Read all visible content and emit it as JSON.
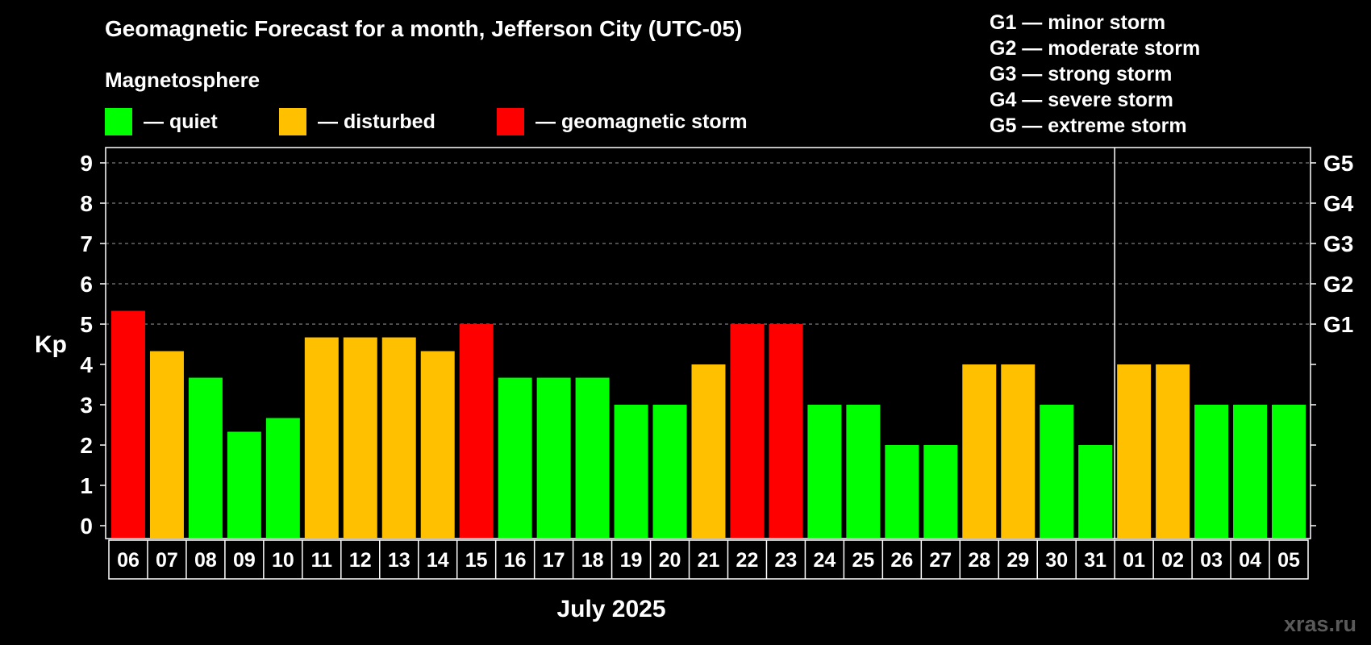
{
  "header": {
    "title": "Geomagnetic Forecast for a month, Jefferson City (UTC-05)",
    "subtitle": "Magnetosphere"
  },
  "legend": [
    {
      "label": "— quiet",
      "color": "#00ff00"
    },
    {
      "label": "— disturbed",
      "color": "#ffc000"
    },
    {
      "label": "— geomagnetic storm",
      "color": "#ff0000"
    }
  ],
  "storm_scale": [
    "G1 — minor storm",
    "G2 — moderate storm",
    "G3 — strong storm",
    "G4 — severe storm",
    "G5 — extreme storm"
  ],
  "watermark": "xras.ru",
  "chart_data": {
    "type": "bar",
    "ylabel": "Kp",
    "xlabel": "July 2025",
    "ylim": [
      0,
      9
    ],
    "yticks": [
      "0",
      "1",
      "2",
      "3",
      "4",
      "5",
      "6",
      "7",
      "8",
      "9"
    ],
    "right_ticks": [
      {
        "value": 5,
        "label": "G1"
      },
      {
        "value": 6,
        "label": "G2"
      },
      {
        "value": 7,
        "label": "G3"
      },
      {
        "value": 8,
        "label": "G4"
      },
      {
        "value": 9,
        "label": "G5"
      }
    ],
    "categories": [
      "06",
      "07",
      "08",
      "09",
      "10",
      "11",
      "12",
      "13",
      "14",
      "15",
      "16",
      "17",
      "18",
      "19",
      "20",
      "21",
      "22",
      "23",
      "24",
      "25",
      "26",
      "27",
      "28",
      "29",
      "30",
      "31",
      "01",
      "02",
      "03",
      "04",
      "05"
    ],
    "values": [
      5.33,
      4.33,
      3.67,
      2.33,
      2.67,
      4.67,
      4.67,
      4.67,
      4.33,
      5,
      3.67,
      3.67,
      3.67,
      3,
      3,
      4,
      5,
      5,
      3,
      3,
      2,
      2,
      4,
      4,
      3,
      2,
      4,
      4,
      3,
      3,
      3
    ],
    "level": [
      "storm",
      "disturbed",
      "quiet",
      "quiet",
      "quiet",
      "disturbed",
      "disturbed",
      "disturbed",
      "disturbed",
      "storm",
      "quiet",
      "quiet",
      "quiet",
      "quiet",
      "quiet",
      "disturbed",
      "storm",
      "storm",
      "quiet",
      "quiet",
      "quiet",
      "quiet",
      "disturbed",
      "disturbed",
      "quiet",
      "quiet",
      "disturbed",
      "disturbed",
      "quiet",
      "quiet",
      "quiet"
    ],
    "colors": {
      "quiet": "#00ff00",
      "disturbed": "#ffc000",
      "storm": "#ff0000"
    },
    "grid_dashed_above": 5,
    "month_divider_after": "31"
  }
}
